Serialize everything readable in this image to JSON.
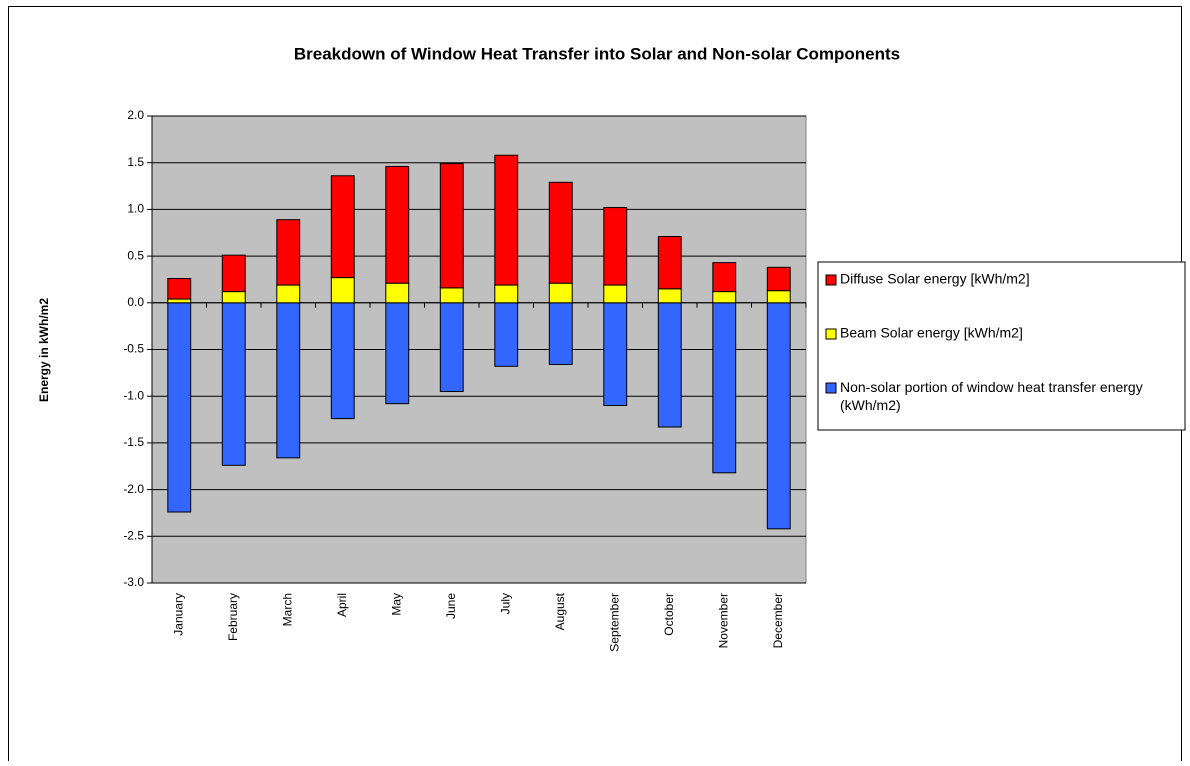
{
  "chart_data": {
    "type": "stacked_bar",
    "title": "Breakdown of Window Heat Transfer into Solar and Non-solar Components",
    "y_label": "Energy in kWh/m2",
    "categories": [
      "January",
      "February",
      "March",
      "April",
      "May",
      "June",
      "July",
      "August",
      "September",
      "October",
      "November",
      "December"
    ],
    "series": [
      {
        "name": "Diffuse Solar energy [kWh/m2]",
        "color": "#ff0000",
        "values": [
          0.22,
          0.39,
          0.7,
          1.09,
          1.25,
          1.33,
          1.39,
          1.08,
          0.83,
          0.56,
          0.31,
          0.25
        ]
      },
      {
        "name": "Beam Solar energy [kWh/m2]",
        "color": "#ffff00",
        "values": [
          0.04,
          0.12,
          0.19,
          0.27,
          0.21,
          0.16,
          0.19,
          0.21,
          0.19,
          0.15,
          0.12,
          0.13
        ]
      },
      {
        "name": "Non-solar portion of window heat transfer energy (kWh/m2)",
        "color": "#3366ff",
        "values": [
          -2.24,
          -1.74,
          -1.66,
          -1.24,
          -1.08,
          -0.95,
          -0.68,
          -0.66,
          -1.1,
          -1.33,
          -1.82,
          -2.42
        ]
      }
    ],
    "ylim": [
      -3.0,
      2.0
    ],
    "yticks": [
      {
        "value": -3.0,
        "label": "-3.0"
      },
      {
        "value": -2.5,
        "label": "-2.5"
      },
      {
        "value": -2.0,
        "label": "-2.0"
      },
      {
        "value": -1.5,
        "label": "-1.5"
      },
      {
        "value": -1.0,
        "label": "-1.0"
      },
      {
        "value": -0.5,
        "label": "-0.5"
      },
      {
        "value": 0.0,
        "label": "0.0"
      },
      {
        "value": 0.5,
        "label": "0.5"
      },
      {
        "value": 1.0,
        "label": "1.0"
      },
      {
        "value": 1.5,
        "label": "1.5"
      },
      {
        "value": 2.0,
        "label": "2.0"
      }
    ],
    "grid": true,
    "legend": "right",
    "plot_background": "#c0c0c0"
  }
}
